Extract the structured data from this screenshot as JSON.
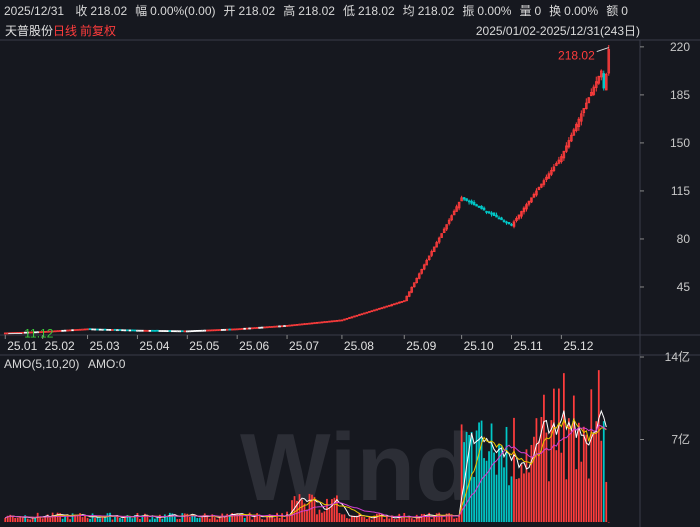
{
  "header": {
    "date": "2025/12/31",
    "fields": [
      {
        "label": "收",
        "value": "218.02"
      },
      {
        "label": "幅",
        "value": "0.00%(0.00)"
      },
      {
        "label": "开",
        "value": "218.02"
      },
      {
        "label": "高",
        "value": "218.02"
      },
      {
        "label": "低",
        "value": "218.02"
      },
      {
        "label": "均",
        "value": "218.02"
      },
      {
        "label": "振",
        "value": "0.00%"
      },
      {
        "label": "量",
        "value": "0"
      },
      {
        "label": "换",
        "value": "0.00%"
      },
      {
        "label": "额",
        "value": "0"
      }
    ]
  },
  "subheader": {
    "stock_name": "天普股份",
    "period": "日线",
    "adjust": "前复权",
    "range": "2025/01/02-2025/12/31(243日)"
  },
  "indicator": {
    "name": "AMO(5,10,20)",
    "value": "AMO:0"
  },
  "colors": {
    "up": "#ff3c3c",
    "down": "#00c8c8",
    "flat": "#ffffff",
    "ma5": "#ffffff",
    "ma10": "#e8c400",
    "ma20": "#d040d0",
    "grid": "#3a3d48"
  },
  "chart_data": [
    {
      "type": "candlestick",
      "y_ticks": [
        "45",
        "80",
        "115",
        "150",
        "185",
        "220"
      ],
      "ylim": [
        10,
        225
      ],
      "x_ticks": [
        "25.01",
        "25.02",
        "25.03",
        "25.04",
        "25.05",
        "25.06",
        "25.07",
        "25.08",
        "25.09",
        "25.10",
        "25.11",
        "25.12"
      ],
      "annotations": [
        {
          "text": "218.02",
          "note": "max",
          "value": 218.02
        },
        {
          "text": "11.12",
          "note": "min",
          "value": 11.12
        }
      ],
      "monthly_closes": [
        {
          "month": "25.01",
          "close": 12.5
        },
        {
          "month": "25.02",
          "close": 14.5
        },
        {
          "month": "25.03",
          "close": 13.5
        },
        {
          "month": "25.04",
          "close": 13.0
        },
        {
          "month": "25.05",
          "close": 14.5
        },
        {
          "month": "25.06",
          "close": 17.0
        },
        {
          "month": "25.07",
          "close": 21.0
        },
        {
          "month": "25.08",
          "close": 35.0
        },
        {
          "month": "25.09",
          "close": 110.0
        },
        {
          "month": "25.10",
          "close": 90.0
        },
        {
          "month": "25.11",
          "close": 140.0
        },
        {
          "month": "25.12",
          "close": 218.02
        }
      ]
    },
    {
      "type": "bar",
      "title": "AMO(5,10,20)",
      "unit": "亿",
      "y_ticks": [
        "7亿",
        "14亿"
      ],
      "ylim": [
        0,
        14
      ],
      "series": [
        {
          "name": "AMO",
          "values_note": "daily turnover"
        }
      ]
    }
  ]
}
